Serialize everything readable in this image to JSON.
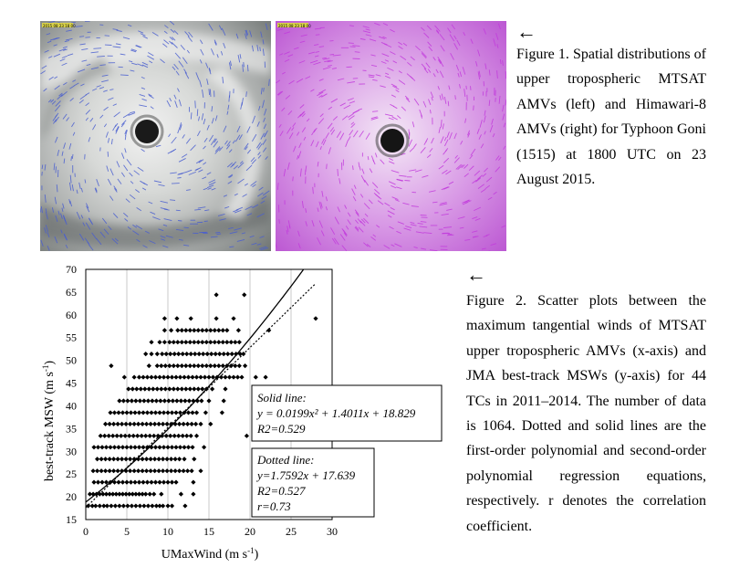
{
  "figure1": {
    "arrow": "←",
    "caption": "Figure 1. Spatial distributions of upper tropospheric MTSAT AMVs (left) and Himawari-8 AMVs (right) for Typhoon Goni (1515) at 1800 UTC on 23 August 2015.",
    "left_panel_header": "2015 08 23 18 00",
    "right_panel_header": "2015 08 23 18 00",
    "vector_color_left": "#4a5fd0",
    "vector_color_right": "#c23bdc"
  },
  "figure2": {
    "arrow": "←",
    "caption": "Figure 2. Scatter plots between the maximum tangential winds of MTSAT upper tropospheric AMVs (x-axis) and JMA best-track MSWs (y-axis) for 44 TCs in 2011–2014. The number of data is 1064. Dotted and solid lines are the first-order polynomial and second-order polynomial regression equations, respectively. r denotes the correlation coefficient."
  },
  "chart_data": {
    "type": "scatter",
    "xlabel": "UMaxWind (m s-1)",
    "ylabel": "best-track MSW (m s-1)",
    "xlim": [
      0,
      30
    ],
    "ylim": [
      15,
      70
    ],
    "xticks": [
      "0",
      "5",
      "10",
      "15",
      "20",
      "25",
      "30"
    ],
    "yticks": [
      "15",
      "20",
      "25",
      "30",
      "35",
      "40",
      "45",
      "50",
      "55",
      "60",
      "65",
      "70"
    ],
    "grid": "vertical",
    "points": [
      [
        0.3,
        18.0
      ],
      [
        0.8,
        18.0
      ],
      [
        1.2,
        18.0
      ],
      [
        1.7,
        18.0
      ],
      [
        2.2,
        18.0
      ],
      [
        2.6,
        18.0
      ],
      [
        3.1,
        18.0
      ],
      [
        3.6,
        18.0
      ],
      [
        4.1,
        18.0
      ],
      [
        4.6,
        18.0
      ],
      [
        5.1,
        18.0
      ],
      [
        5.6,
        18.0
      ],
      [
        6.1,
        18.0
      ],
      [
        6.6,
        18.0
      ],
      [
        7.1,
        18.0
      ],
      [
        7.6,
        18.0
      ],
      [
        8.1,
        18.0
      ],
      [
        8.6,
        18.0
      ],
      [
        9.0,
        18.0
      ],
      [
        9.4,
        18.0
      ],
      [
        10.0,
        18.0
      ],
      [
        10.5,
        18.0
      ],
      [
        12.1,
        18.0
      ],
      [
        0.5,
        20.6
      ],
      [
        0.9,
        20.6
      ],
      [
        1.3,
        20.6
      ],
      [
        1.7,
        20.6
      ],
      [
        2.1,
        20.6
      ],
      [
        2.5,
        20.6
      ],
      [
        2.9,
        20.6
      ],
      [
        3.3,
        20.6
      ],
      [
        3.7,
        20.6
      ],
      [
        4.1,
        20.6
      ],
      [
        4.5,
        20.6
      ],
      [
        4.9,
        20.6
      ],
      [
        5.3,
        20.6
      ],
      [
        5.7,
        20.6
      ],
      [
        6.1,
        20.6
      ],
      [
        6.5,
        20.6
      ],
      [
        6.9,
        20.6
      ],
      [
        7.3,
        20.6
      ],
      [
        7.8,
        20.6
      ],
      [
        8.3,
        20.6
      ],
      [
        9.2,
        20.6
      ],
      [
        11.6,
        20.6
      ],
      [
        13.1,
        20.6
      ],
      [
        1.0,
        23.2
      ],
      [
        1.5,
        23.2
      ],
      [
        2.0,
        23.2
      ],
      [
        2.5,
        23.2
      ],
      [
        3.0,
        23.2
      ],
      [
        3.5,
        23.2
      ],
      [
        4.0,
        23.2
      ],
      [
        4.5,
        23.2
      ],
      [
        5.0,
        23.2
      ],
      [
        5.5,
        23.2
      ],
      [
        6.0,
        23.2
      ],
      [
        6.5,
        23.2
      ],
      [
        7.0,
        23.2
      ],
      [
        7.5,
        23.2
      ],
      [
        8.0,
        23.2
      ],
      [
        8.5,
        23.2
      ],
      [
        9.0,
        23.2
      ],
      [
        9.5,
        23.2
      ],
      [
        10.0,
        23.2
      ],
      [
        10.5,
        23.2
      ],
      [
        11.0,
        23.2
      ],
      [
        13.1,
        23.2
      ],
      [
        0.9,
        25.7
      ],
      [
        1.4,
        25.7
      ],
      [
        1.9,
        25.7
      ],
      [
        2.4,
        25.7
      ],
      [
        2.9,
        25.7
      ],
      [
        3.4,
        25.7
      ],
      [
        3.9,
        25.7
      ],
      [
        4.4,
        25.7
      ],
      [
        4.9,
        25.7
      ],
      [
        5.4,
        25.7
      ],
      [
        5.9,
        25.7
      ],
      [
        6.4,
        25.7
      ],
      [
        6.9,
        25.7
      ],
      [
        7.4,
        25.7
      ],
      [
        7.9,
        25.7
      ],
      [
        8.4,
        25.7
      ],
      [
        8.9,
        25.7
      ],
      [
        9.4,
        25.7
      ],
      [
        9.9,
        25.7
      ],
      [
        10.4,
        25.7
      ],
      [
        10.9,
        25.7
      ],
      [
        11.4,
        25.7
      ],
      [
        11.9,
        25.7
      ],
      [
        12.4,
        25.7
      ],
      [
        12.9,
        25.7
      ],
      [
        14.0,
        25.7
      ],
      [
        1.4,
        28.3
      ],
      [
        1.9,
        28.3
      ],
      [
        2.4,
        28.3
      ],
      [
        2.9,
        28.3
      ],
      [
        3.4,
        28.3
      ],
      [
        3.9,
        28.3
      ],
      [
        4.4,
        28.3
      ],
      [
        4.9,
        28.3
      ],
      [
        5.4,
        28.3
      ],
      [
        5.9,
        28.3
      ],
      [
        6.4,
        28.3
      ],
      [
        6.9,
        28.3
      ],
      [
        7.4,
        28.3
      ],
      [
        7.9,
        28.3
      ],
      [
        8.4,
        28.3
      ],
      [
        8.9,
        28.3
      ],
      [
        9.4,
        28.3
      ],
      [
        9.9,
        28.3
      ],
      [
        10.4,
        28.3
      ],
      [
        10.9,
        28.3
      ],
      [
        11.4,
        28.3
      ],
      [
        12.0,
        28.3
      ],
      [
        13.2,
        28.3
      ],
      [
        1.0,
        30.9
      ],
      [
        1.5,
        30.9
      ],
      [
        2.0,
        30.9
      ],
      [
        2.5,
        30.9
      ],
      [
        3.0,
        30.9
      ],
      [
        3.5,
        30.9
      ],
      [
        4.0,
        30.9
      ],
      [
        4.5,
        30.9
      ],
      [
        5.0,
        30.9
      ],
      [
        5.5,
        30.9
      ],
      [
        6.0,
        30.9
      ],
      [
        6.5,
        30.9
      ],
      [
        7.0,
        30.9
      ],
      [
        7.5,
        30.9
      ],
      [
        8.0,
        30.9
      ],
      [
        8.5,
        30.9
      ],
      [
        9.0,
        30.9
      ],
      [
        9.5,
        30.9
      ],
      [
        10.0,
        30.9
      ],
      [
        10.5,
        30.9
      ],
      [
        11.0,
        30.9
      ],
      [
        11.5,
        30.9
      ],
      [
        12.0,
        30.9
      ],
      [
        12.5,
        30.9
      ],
      [
        13.0,
        30.9
      ],
      [
        14.4,
        30.9
      ],
      [
        1.8,
        33.4
      ],
      [
        2.3,
        33.4
      ],
      [
        2.8,
        33.4
      ],
      [
        3.3,
        33.4
      ],
      [
        3.8,
        33.4
      ],
      [
        4.3,
        33.4
      ],
      [
        4.8,
        33.4
      ],
      [
        5.3,
        33.4
      ],
      [
        5.8,
        33.4
      ],
      [
        6.3,
        33.4
      ],
      [
        6.8,
        33.4
      ],
      [
        7.3,
        33.4
      ],
      [
        7.8,
        33.4
      ],
      [
        8.3,
        33.4
      ],
      [
        8.8,
        33.4
      ],
      [
        9.3,
        33.4
      ],
      [
        9.8,
        33.4
      ],
      [
        10.3,
        33.4
      ],
      [
        10.8,
        33.4
      ],
      [
        11.3,
        33.4
      ],
      [
        11.8,
        33.4
      ],
      [
        12.3,
        33.4
      ],
      [
        12.8,
        33.4
      ],
      [
        13.5,
        33.4
      ],
      [
        19.6,
        33.4
      ],
      [
        2.4,
        36.0
      ],
      [
        2.9,
        36.0
      ],
      [
        3.4,
        36.0
      ],
      [
        3.9,
        36.0
      ],
      [
        4.4,
        36.0
      ],
      [
        4.9,
        36.0
      ],
      [
        5.4,
        36.0
      ],
      [
        5.9,
        36.0
      ],
      [
        6.4,
        36.0
      ],
      [
        6.9,
        36.0
      ],
      [
        7.4,
        36.0
      ],
      [
        7.9,
        36.0
      ],
      [
        8.4,
        36.0
      ],
      [
        8.9,
        36.0
      ],
      [
        9.4,
        36.0
      ],
      [
        9.9,
        36.0
      ],
      [
        10.4,
        36.0
      ],
      [
        10.9,
        36.0
      ],
      [
        11.4,
        36.0
      ],
      [
        11.9,
        36.0
      ],
      [
        12.4,
        36.0
      ],
      [
        12.9,
        36.0
      ],
      [
        13.4,
        36.0
      ],
      [
        14.0,
        36.0
      ],
      [
        15.2,
        36.0
      ],
      [
        3.0,
        38.5
      ],
      [
        3.5,
        38.5
      ],
      [
        4.0,
        38.5
      ],
      [
        4.5,
        38.5
      ],
      [
        5.0,
        38.5
      ],
      [
        5.5,
        38.5
      ],
      [
        6.0,
        38.5
      ],
      [
        6.5,
        38.5
      ],
      [
        7.0,
        38.5
      ],
      [
        7.5,
        38.5
      ],
      [
        8.0,
        38.5
      ],
      [
        8.5,
        38.5
      ],
      [
        9.0,
        38.5
      ],
      [
        9.5,
        38.5
      ],
      [
        10.0,
        38.5
      ],
      [
        10.5,
        38.5
      ],
      [
        11.0,
        38.5
      ],
      [
        11.5,
        38.5
      ],
      [
        12.0,
        38.5
      ],
      [
        12.5,
        38.5
      ],
      [
        13.0,
        38.5
      ],
      [
        13.5,
        38.5
      ],
      [
        14.6,
        38.5
      ],
      [
        16.6,
        38.5
      ],
      [
        4.1,
        41.1
      ],
      [
        4.6,
        41.1
      ],
      [
        5.1,
        41.1
      ],
      [
        5.6,
        41.1
      ],
      [
        6.1,
        41.1
      ],
      [
        6.6,
        41.1
      ],
      [
        7.1,
        41.1
      ],
      [
        7.6,
        41.1
      ],
      [
        8.1,
        41.1
      ],
      [
        8.6,
        41.1
      ],
      [
        9.1,
        41.1
      ],
      [
        9.6,
        41.1
      ],
      [
        10.1,
        41.1
      ],
      [
        10.6,
        41.1
      ],
      [
        11.1,
        41.1
      ],
      [
        11.6,
        41.1
      ],
      [
        12.1,
        41.1
      ],
      [
        12.6,
        41.1
      ],
      [
        13.1,
        41.1
      ],
      [
        13.6,
        41.1
      ],
      [
        14.1,
        41.1
      ],
      [
        15.0,
        41.1
      ],
      [
        16.8,
        41.1
      ],
      [
        5.2,
        43.7
      ],
      [
        5.7,
        43.7
      ],
      [
        6.2,
        43.7
      ],
      [
        6.7,
        43.7
      ],
      [
        7.2,
        43.7
      ],
      [
        7.7,
        43.7
      ],
      [
        8.2,
        43.7
      ],
      [
        8.7,
        43.7
      ],
      [
        9.2,
        43.7
      ],
      [
        9.7,
        43.7
      ],
      [
        10.2,
        43.7
      ],
      [
        10.7,
        43.7
      ],
      [
        11.2,
        43.7
      ],
      [
        11.7,
        43.7
      ],
      [
        12.2,
        43.7
      ],
      [
        12.7,
        43.7
      ],
      [
        13.2,
        43.7
      ],
      [
        13.7,
        43.7
      ],
      [
        14.2,
        43.7
      ],
      [
        14.7,
        43.7
      ],
      [
        15.4,
        43.7
      ],
      [
        17.0,
        43.7
      ],
      [
        4.7,
        46.3
      ],
      [
        5.9,
        46.3
      ],
      [
        6.5,
        46.3
      ],
      [
        7.0,
        46.3
      ],
      [
        7.5,
        46.3
      ],
      [
        8.0,
        46.3
      ],
      [
        8.5,
        46.3
      ],
      [
        9.0,
        46.3
      ],
      [
        9.5,
        46.3
      ],
      [
        10.0,
        46.3
      ],
      [
        10.5,
        46.3
      ],
      [
        11.0,
        46.3
      ],
      [
        11.5,
        46.3
      ],
      [
        12.0,
        46.3
      ],
      [
        12.5,
        46.3
      ],
      [
        13.0,
        46.3
      ],
      [
        13.5,
        46.3
      ],
      [
        14.0,
        46.3
      ],
      [
        14.5,
        46.3
      ],
      [
        15.0,
        46.3
      ],
      [
        15.5,
        46.3
      ],
      [
        16.0,
        46.3
      ],
      [
        16.5,
        46.3
      ],
      [
        17.0,
        46.3
      ],
      [
        17.5,
        46.3
      ],
      [
        18.0,
        46.3
      ],
      [
        18.5,
        46.3
      ],
      [
        19.0,
        46.3
      ],
      [
        20.7,
        46.3
      ],
      [
        21.9,
        46.3
      ],
      [
        3.1,
        48.8
      ],
      [
        7.7,
        48.8
      ],
      [
        8.7,
        48.8
      ],
      [
        9.2,
        48.8
      ],
      [
        9.7,
        48.8
      ],
      [
        10.2,
        48.8
      ],
      [
        10.7,
        48.8
      ],
      [
        11.2,
        48.8
      ],
      [
        11.7,
        48.8
      ],
      [
        12.2,
        48.8
      ],
      [
        12.7,
        48.8
      ],
      [
        13.2,
        48.8
      ],
      [
        13.7,
        48.8
      ],
      [
        14.2,
        48.8
      ],
      [
        14.7,
        48.8
      ],
      [
        15.2,
        48.8
      ],
      [
        15.7,
        48.8
      ],
      [
        16.2,
        48.8
      ],
      [
        16.7,
        48.8
      ],
      [
        17.2,
        48.8
      ],
      [
        17.7,
        48.8
      ],
      [
        18.2,
        48.8
      ],
      [
        18.7,
        48.8
      ],
      [
        19.4,
        48.8
      ],
      [
        7.3,
        51.4
      ],
      [
        8.0,
        51.4
      ],
      [
        8.7,
        51.4
      ],
      [
        9.3,
        51.4
      ],
      [
        9.8,
        51.4
      ],
      [
        10.3,
        51.4
      ],
      [
        10.8,
        51.4
      ],
      [
        11.3,
        51.4
      ],
      [
        11.8,
        51.4
      ],
      [
        12.3,
        51.4
      ],
      [
        12.8,
        51.4
      ],
      [
        13.3,
        51.4
      ],
      [
        13.8,
        51.4
      ],
      [
        14.3,
        51.4
      ],
      [
        14.8,
        51.4
      ],
      [
        15.3,
        51.4
      ],
      [
        15.8,
        51.4
      ],
      [
        16.3,
        51.4
      ],
      [
        16.8,
        51.4
      ],
      [
        17.3,
        51.4
      ],
      [
        17.8,
        51.4
      ],
      [
        18.3,
        51.4
      ],
      [
        18.8,
        51.4
      ],
      [
        19.2,
        51.4
      ],
      [
        8.0,
        54.0
      ],
      [
        9.0,
        54.0
      ],
      [
        9.6,
        54.0
      ],
      [
        10.2,
        54.0
      ],
      [
        10.7,
        54.0
      ],
      [
        11.2,
        54.0
      ],
      [
        11.7,
        54.0
      ],
      [
        12.2,
        54.0
      ],
      [
        12.7,
        54.0
      ],
      [
        13.2,
        54.0
      ],
      [
        13.7,
        54.0
      ],
      [
        14.2,
        54.0
      ],
      [
        14.7,
        54.0
      ],
      [
        15.2,
        54.0
      ],
      [
        15.7,
        54.0
      ],
      [
        16.2,
        54.0
      ],
      [
        16.7,
        54.0
      ],
      [
        17.2,
        54.0
      ],
      [
        17.7,
        54.0
      ],
      [
        18.2,
        54.0
      ],
      [
        18.7,
        54.0
      ],
      [
        9.6,
        56.6
      ],
      [
        10.4,
        56.6
      ],
      [
        11.2,
        56.6
      ],
      [
        11.7,
        56.6
      ],
      [
        12.2,
        56.6
      ],
      [
        12.7,
        56.6
      ],
      [
        13.2,
        56.6
      ],
      [
        13.7,
        56.6
      ],
      [
        14.2,
        56.6
      ],
      [
        14.7,
        56.6
      ],
      [
        15.2,
        56.6
      ],
      [
        15.7,
        56.6
      ],
      [
        16.2,
        56.6
      ],
      [
        16.7,
        56.6
      ],
      [
        17.2,
        56.6
      ],
      [
        18.6,
        56.6
      ],
      [
        22.3,
        56.6
      ],
      [
        9.6,
        59.2
      ],
      [
        11.1,
        59.2
      ],
      [
        12.8,
        59.2
      ],
      [
        15.9,
        59.2
      ],
      [
        18.0,
        59.2
      ],
      [
        28.0,
        59.2
      ],
      [
        15.9,
        64.4
      ],
      [
        19.3,
        64.4
      ]
    ],
    "series": [
      {
        "name": "Solid line",
        "equation": "y = 0.0199x^2 + 1.4011x + 18.829",
        "coef": [
          0.0199,
          1.4011,
          18.829
        ]
      },
      {
        "name": "Dotted line",
        "equation": "y=1.7592x + 17.639",
        "coef": [
          0,
          1.7592,
          17.639
        ]
      }
    ],
    "annotations": {
      "solid": {
        "title": "Solid line:",
        "eq": "y = 0.0199x² + 1.4011x + 18.829",
        "r2": "R2=0.529"
      },
      "dotted": {
        "title": "Dotted line:",
        "eq": "y=1.7592x + 17.639",
        "r2": "R2=0.527",
        "r": "r=0.73"
      }
    }
  }
}
